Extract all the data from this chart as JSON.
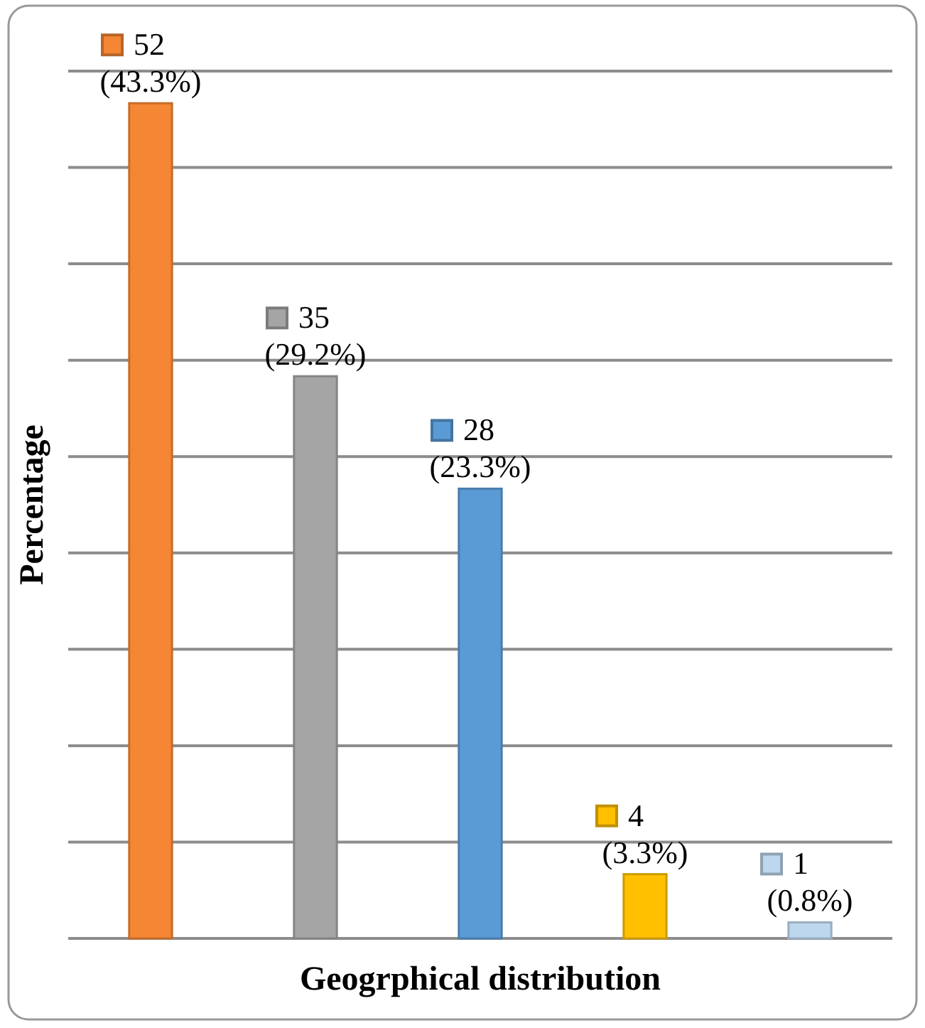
{
  "chart_data": {
    "type": "bar",
    "xlabel": "Geogrphical distribution",
    "ylabel": "Percentage",
    "categories": [
      null,
      null,
      null,
      null,
      null
    ],
    "values": [
      52,
      35,
      28,
      4,
      1
    ],
    "colors": [
      "#f58634",
      "#a5a5a5",
      "#5b9bd5",
      "#ffc000",
      "#bdd7ee"
    ],
    "value_labels": [
      "52 (43.3%)",
      "35 (29.2%)",
      "28 (23.3%)",
      "4 (3.3%)",
      "1(0.8%)"
    ],
    "ylim": [
      0,
      54
    ],
    "yticks": [
      {
        "value": 0,
        "label": null
      },
      {
        "value": 6,
        "label": null
      },
      {
        "value": 12,
        "label": null
      },
      {
        "value": 18,
        "label": null
      },
      {
        "value": 24,
        "label": null
      },
      {
        "value": 30,
        "label": null
      },
      {
        "value": 36,
        "label": null
      },
      {
        "value": 42,
        "label": null
      },
      {
        "value": 48,
        "label": null
      },
      {
        "value": 54,
        "label": null
      }
    ],
    "grid": "y"
  }
}
